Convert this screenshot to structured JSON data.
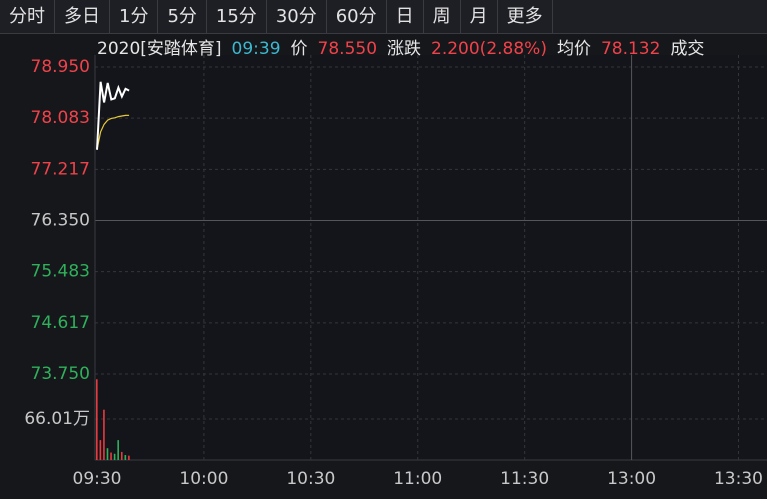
{
  "toolbar": {
    "tabs": [
      "分时",
      "多日",
      "1分",
      "5分",
      "15分",
      "30分",
      "60分",
      "日",
      "周",
      "月",
      "更多"
    ]
  },
  "info_bar": [
    {
      "text": "2020[安踏体育]",
      "color": "#e6e6e6"
    },
    {
      "text": "09:39",
      "color": "#3cb8d0"
    },
    {
      "text": "价",
      "color": "#e6e6e6"
    },
    {
      "text": "78.550",
      "color": "#f0424a"
    },
    {
      "text": "涨跌",
      "color": "#e6e6e6"
    },
    {
      "text": "2.200(2.88%)",
      "color": "#f0424a"
    },
    {
      "text": "均价",
      "color": "#e6e6e6"
    },
    {
      "text": "78.132",
      "color": "#f0424a"
    },
    {
      "text": "成交",
      "color": "#e6e6e6"
    }
  ],
  "chart_data": {
    "type": "line",
    "x": [
      "09:30",
      "09:31",
      "09:32",
      "09:33",
      "09:34",
      "09:35",
      "09:36",
      "09:37",
      "09:38",
      "09:39"
    ],
    "xlim": [
      "09:30",
      "13:38"
    ],
    "xticks": [
      "09:30",
      "10:00",
      "10:30",
      "11:00",
      "11:30",
      "13:00",
      "13:30"
    ],
    "ylim": [
      73.75,
      78.95
    ],
    "yticks": [
      {
        "value": 78.95,
        "label": "78.950"
      },
      {
        "value": 78.083,
        "label": "78.083"
      },
      {
        "value": 77.217,
        "label": "77.217"
      },
      {
        "value": 76.35,
        "label": "76.350"
      },
      {
        "value": 75.483,
        "label": "75.483"
      },
      {
        "value": 74.617,
        "label": "74.617"
      },
      {
        "value": 73.75,
        "label": "73.750"
      }
    ],
    "ytick_colors": [
      "#f0424a",
      "#f0424a",
      "#f0424a",
      "#c8c8c8",
      "#2fb15b",
      "#2fb15b",
      "#2fb15b"
    ],
    "grid": true,
    "series": [
      {
        "name": "价",
        "color": "#ffffff",
        "values": [
          77.55,
          78.7,
          78.35,
          78.68,
          78.4,
          78.42,
          78.6,
          78.45,
          78.58,
          78.55
        ]
      },
      {
        "name": "均价",
        "color": "#e8c93a",
        "values": [
          77.55,
          77.85,
          77.98,
          78.05,
          78.08,
          78.09,
          78.11,
          78.12,
          78.13,
          78.132
        ]
      }
    ],
    "volume": {
      "values": [
        130,
        32,
        81,
        19,
        12,
        10,
        32,
        13,
        8,
        7
      ],
      "colors": [
        "#e83b3f",
        "#e83b3f",
        "#e83b3f",
        "#2fb15b",
        "#e83b3f",
        "#2fb15b",
        "#2fb15b",
        "#e83b3f",
        "#2fb15b",
        "#e83b3f"
      ],
      "ylim": [
        0,
        132.02
      ],
      "yticks": [
        {
          "value": 66.01,
          "label": "66.01万"
        }
      ]
    }
  }
}
